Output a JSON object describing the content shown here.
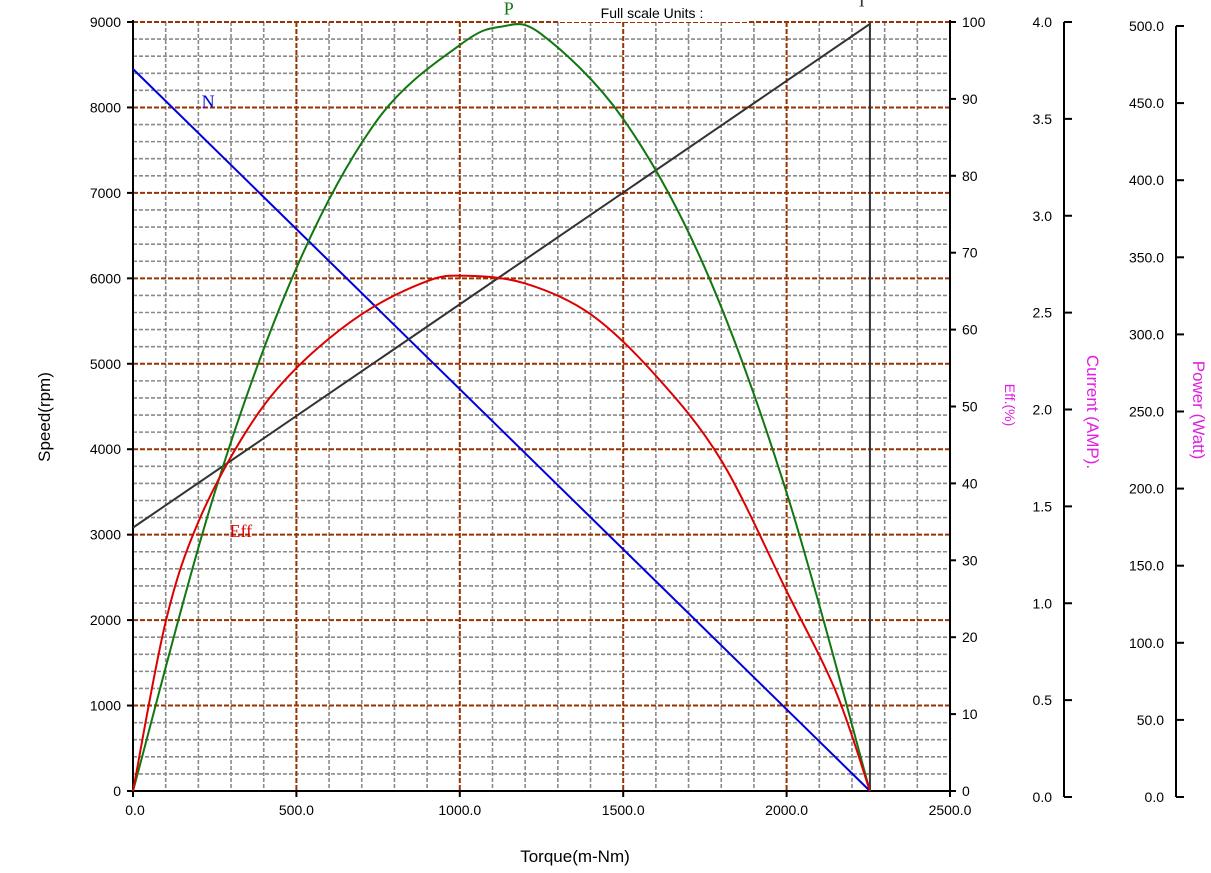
{
  "chart_data": {
    "type": "line",
    "title": "Full scale Units :",
    "xlabel": "Torque(m-Nm)",
    "xlim": [
      0,
      2500
    ],
    "xticks": [
      0,
      500,
      1000,
      1500,
      2000,
      2500
    ],
    "xtick_labels": [
      "0.0",
      "500.0",
      "1000.0",
      "1500.0",
      "2000.0",
      "2500.0"
    ],
    "grid": true,
    "axes": [
      {
        "id": "speed",
        "label": "Speed(rpm)",
        "range": [
          0,
          9000
        ],
        "ticks": [
          0,
          1000,
          2000,
          3000,
          4000,
          5000,
          6000,
          7000,
          8000,
          9000
        ],
        "tick_labels": [
          "0",
          "1000",
          "2000",
          "3000",
          "4000",
          "5000",
          "6000",
          "7000",
          "8000",
          "9000"
        ],
        "position": "left",
        "color": "#000000"
      },
      {
        "id": "eff",
        "label": "Eff.(%)",
        "range": [
          0,
          100
        ],
        "ticks": [
          0,
          10,
          20,
          30,
          40,
          50,
          60,
          70,
          80,
          90,
          100
        ],
        "tick_labels": [
          "0",
          "10",
          "20",
          "30",
          "40",
          "50",
          "60",
          "70",
          "80",
          "90",
          "100"
        ],
        "position": "right",
        "color": "#e020e0"
      },
      {
        "id": "current",
        "label": "Current (AMP).",
        "range": [
          0,
          4.0
        ],
        "ticks": [
          0,
          0.5,
          1.0,
          1.5,
          2.0,
          2.5,
          3.0,
          3.5,
          4.0
        ],
        "tick_labels": [
          "0.0",
          "0.5",
          "1.0",
          "1.5",
          "2.0",
          "2.5",
          "3.0",
          "3.5",
          "4.0"
        ],
        "position": "right",
        "color": "#e020e0"
      },
      {
        "id": "power",
        "label": "Power (Watt)",
        "range": [
          0,
          500
        ],
        "ticks": [
          0,
          50,
          100,
          150,
          200,
          250,
          300,
          350,
          400,
          450,
          500
        ],
        "tick_labels": [
          "0.0",
          "50.0",
          "100.0",
          "150.0",
          "200.0",
          "250.0",
          "300.0",
          "350.0",
          "400.0",
          "450.0",
          "500.0"
        ],
        "position": "right",
        "color": "#e020e0"
      }
    ],
    "series": [
      {
        "name": "N",
        "axis": "speed",
        "color": "#0000dd",
        "x": [
          0,
          2255
        ],
        "y": [
          8450,
          0
        ],
        "label_at": [
          230,
          8000
        ]
      },
      {
        "name": "I",
        "axis": "current",
        "color": "#333333",
        "x": [
          0,
          2255,
          2255
        ],
        "y": [
          1.37,
          3.99,
          0
        ],
        "label_at": [
          2230,
          4.08
        ]
      },
      {
        "name": "P",
        "axis": "power",
        "color": "#117711",
        "x": [
          0,
          250,
          500,
          750,
          1000,
          1127,
          1250,
          1500,
          1750,
          2000,
          2255
        ],
        "y": [
          0,
          194,
          340,
          437,
          485,
          497,
          492,
          437,
          340,
          194,
          0
        ],
        "label_at": [
          1150,
          505
        ]
      },
      {
        "name": "Eff",
        "axis": "eff",
        "color": "#dd0000",
        "x": [
          0,
          100,
          200,
          350,
          500,
          700,
          900,
          1020,
          1200,
          1400,
          1600,
          1800,
          2000,
          2150,
          2255
        ],
        "y": [
          0,
          22,
          35,
          47,
          55,
          62,
          66.3,
          67,
          66,
          62,
          54,
          43,
          26,
          13,
          0
        ],
        "label_at": [
          330,
          33
        ]
      }
    ]
  }
}
